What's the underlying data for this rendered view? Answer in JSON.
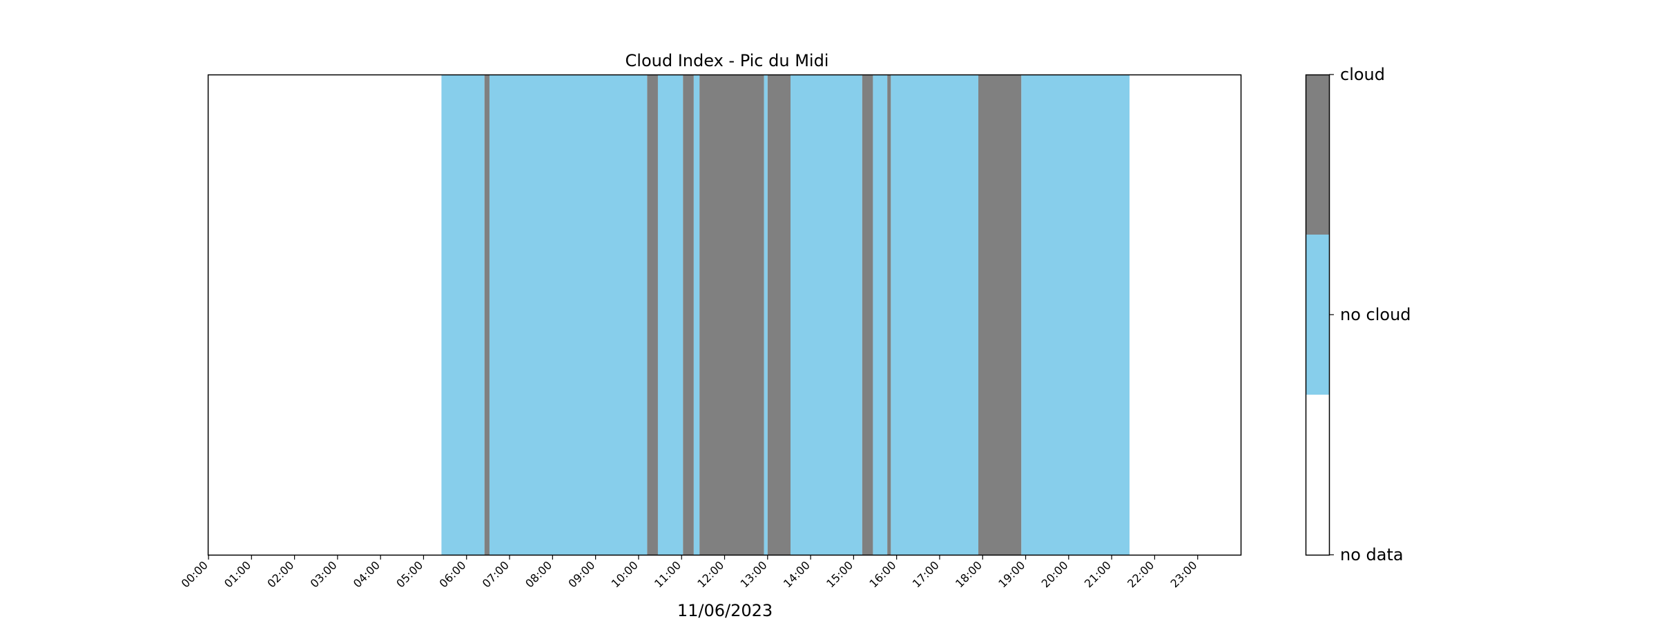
{
  "chart_data": {
    "type": "heatmap",
    "title": "Cloud Index - Pic du Midi",
    "xlabel": "11/06/2023",
    "date": "11/06/2023",
    "x_range_hours": [
      0,
      24
    ],
    "x_tick_labels": [
      "00:00",
      "01:00",
      "02:00",
      "03:00",
      "04:00",
      "05:00",
      "06:00",
      "07:00",
      "08:00",
      "09:00",
      "10:00",
      "11:00",
      "12:00",
      "13:00",
      "14:00",
      "15:00",
      "16:00",
      "17:00",
      "18:00",
      "19:00",
      "20:00",
      "21:00",
      "22:00",
      "23:00"
    ],
    "categories": [
      "no data",
      "no cloud",
      "cloud"
    ],
    "colors": {
      "no data": "#ffffff",
      "no cloud": "#87ceeb",
      "cloud": "#808080"
    },
    "colorbar_position": "right",
    "grid": false,
    "segments": [
      {
        "start": "00:00",
        "end": "05:25",
        "state": "no data"
      },
      {
        "start": "05:25",
        "end": "06:25",
        "state": "no cloud"
      },
      {
        "start": "06:25",
        "end": "06:32",
        "state": "cloud"
      },
      {
        "start": "06:32",
        "end": "10:12",
        "state": "no cloud"
      },
      {
        "start": "10:12",
        "end": "10:27",
        "state": "cloud"
      },
      {
        "start": "10:27",
        "end": "11:02",
        "state": "no cloud"
      },
      {
        "start": "11:02",
        "end": "11:17",
        "state": "cloud"
      },
      {
        "start": "11:17",
        "end": "11:25",
        "state": "no cloud"
      },
      {
        "start": "11:25",
        "end": "12:55",
        "state": "cloud"
      },
      {
        "start": "12:55",
        "end": "13:00",
        "state": "no cloud"
      },
      {
        "start": "13:00",
        "end": "13:32",
        "state": "cloud"
      },
      {
        "start": "13:32",
        "end": "15:12",
        "state": "no cloud"
      },
      {
        "start": "15:12",
        "end": "15:27",
        "state": "cloud"
      },
      {
        "start": "15:27",
        "end": "15:47",
        "state": "no cloud"
      },
      {
        "start": "15:47",
        "end": "15:52",
        "state": "cloud"
      },
      {
        "start": "15:52",
        "end": "17:54",
        "state": "no cloud"
      },
      {
        "start": "17:54",
        "end": "18:54",
        "state": "cloud"
      },
      {
        "start": "18:54",
        "end": "21:25",
        "state": "no cloud"
      },
      {
        "start": "21:25",
        "end": "24:00",
        "state": "no data"
      }
    ]
  }
}
